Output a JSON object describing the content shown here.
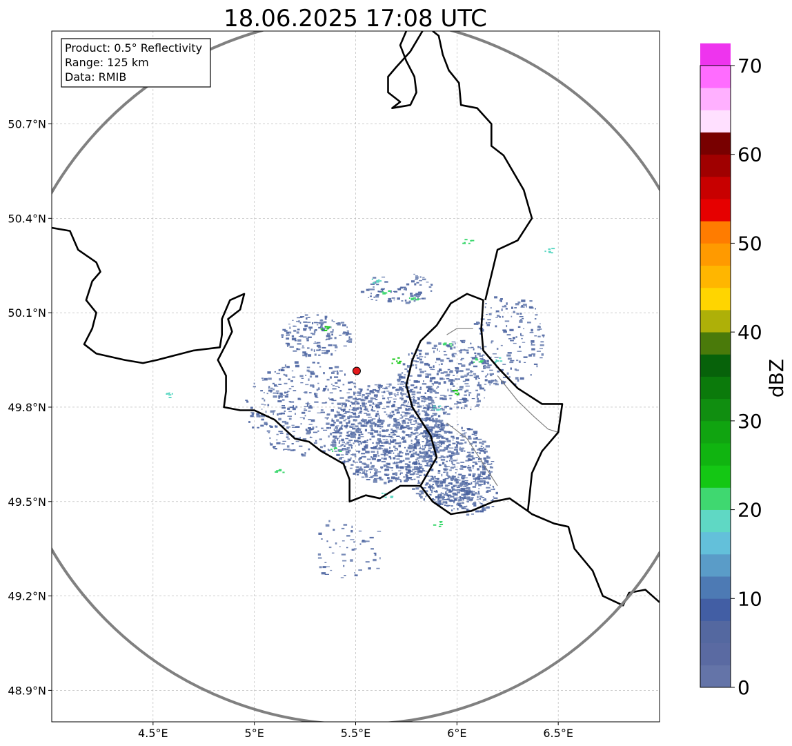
{
  "map": {
    "title": "18.06.2025 17:08 UTC",
    "info": {
      "product": "Product: 0.5° Reflectivity",
      "range": "Range: 125 km",
      "source": "Data: RMIB"
    },
    "extent": {
      "lon": [
        4.0,
        7.0
      ],
      "lat": [
        48.8,
        50.995
      ]
    },
    "lon_ticks": [
      {
        "value": 4.5,
        "label": "4.5°E"
      },
      {
        "value": 5.0,
        "label": "5°E"
      },
      {
        "value": 5.5,
        "label": "5.5°E"
      },
      {
        "value": 6.0,
        "label": "6°E"
      },
      {
        "value": 6.5,
        "label": "6.5°E"
      }
    ],
    "lat_ticks": [
      {
        "value": 48.9,
        "label": "48.9°N"
      },
      {
        "value": 49.2,
        "label": "49.2°N"
      },
      {
        "value": 49.5,
        "label": "49.5°N"
      },
      {
        "value": 49.8,
        "label": "49.8°N"
      },
      {
        "value": 50.1,
        "label": "50.1°N"
      },
      {
        "value": 50.4,
        "label": "50.4°N"
      },
      {
        "value": 50.7,
        "label": "50.7°N"
      }
    ],
    "radar_site": {
      "lon": 5.505,
      "lat": 49.915,
      "color": "#e41a1c"
    },
    "range_ring": {
      "center_lon": 5.505,
      "center_lat": 49.915,
      "radius_km": 125,
      "color": "#808080"
    },
    "colors": {
      "grid": "#b0b0b0",
      "border": "#000000",
      "inner_border": "#808080",
      "echo_light": "#6a7fb0",
      "echo_dark": "#4a63a0"
    },
    "colorbar": {
      "label": "dBZ",
      "min": 0,
      "max": 70,
      "step": 2.5,
      "ticks": [
        {
          "value": 0,
          "label": "0"
        },
        {
          "value": 10,
          "label": "10"
        },
        {
          "value": 20,
          "label": "20"
        },
        {
          "value": 30,
          "label": "30"
        },
        {
          "value": 40,
          "label": "40"
        },
        {
          "value": 50,
          "label": "50"
        },
        {
          "value": 60,
          "label": "60"
        },
        {
          "value": 70,
          "label": "70"
        }
      ],
      "colors": [
        "#6474a8",
        "#5a6aa2",
        "#5468a0",
        "#425ea4",
        "#4d7ab4",
        "#5a9cc8",
        "#63c0da",
        "#5fd8c4",
        "#3fd870",
        "#14c714",
        "#10b410",
        "#10a410",
        "#108e10",
        "#0b7a0b",
        "#07620a",
        "#4a7a0a",
        "#aeb008",
        "#ffd500",
        "#ffb600",
        "#ff9a00",
        "#ff7c00",
        "#e60000",
        "#c80000",
        "#a00000",
        "#780000",
        "#ffe0ff",
        "#ffb0ff",
        "#ff6cff",
        "#ee34ee"
      ]
    },
    "borders": [
      {
        "id": "belgium-france-west",
        "points": [
          [
            4.0,
            50.37
          ],
          [
            4.09,
            50.36
          ],
          [
            4.13,
            50.3
          ],
          [
            4.22,
            50.26
          ],
          [
            4.24,
            50.23
          ],
          [
            4.2,
            50.2
          ],
          [
            4.17,
            50.14
          ],
          [
            4.22,
            50.1
          ],
          [
            4.2,
            50.05
          ],
          [
            4.16,
            50.0
          ],
          [
            4.22,
            49.97
          ],
          [
            4.36,
            49.95
          ],
          [
            4.45,
            49.94
          ],
          [
            4.52,
            49.95
          ],
          [
            4.7,
            49.98
          ],
          [
            4.83,
            49.99
          ],
          [
            4.84,
            50.03
          ],
          [
            4.84,
            50.08
          ],
          [
            4.88,
            50.14
          ],
          [
            4.95,
            50.16
          ],
          [
            4.93,
            50.11
          ],
          [
            4.87,
            50.08
          ],
          [
            4.89,
            50.04
          ],
          [
            4.86,
            50.0
          ],
          [
            4.82,
            49.95
          ],
          [
            4.86,
            49.9
          ],
          [
            4.86,
            49.85
          ],
          [
            4.85,
            49.8
          ],
          [
            4.93,
            49.79
          ],
          [
            5.0,
            49.79
          ],
          [
            5.1,
            49.76
          ],
          [
            5.2,
            49.7
          ],
          [
            5.27,
            49.69
          ],
          [
            5.33,
            49.66
          ],
          [
            5.44,
            49.62
          ],
          [
            5.47,
            49.57
          ],
          [
            5.47,
            49.5
          ],
          [
            5.55,
            49.52
          ],
          [
            5.62,
            49.51
          ],
          [
            5.72,
            49.55
          ],
          [
            5.82,
            49.55
          ],
          [
            5.88,
            49.5
          ],
          [
            5.97,
            49.46
          ],
          [
            6.07,
            49.47
          ],
          [
            6.18,
            49.5
          ],
          [
            6.26,
            49.51
          ],
          [
            6.35,
            49.47
          ],
          [
            6.37,
            49.46
          ],
          [
            6.48,
            49.43
          ],
          [
            6.55,
            49.42
          ],
          [
            6.58,
            49.35
          ],
          [
            6.67,
            49.28
          ],
          [
            6.72,
            49.2
          ],
          [
            6.82,
            49.17
          ],
          [
            6.85,
            49.21
          ],
          [
            6.93,
            49.22
          ],
          [
            7.0,
            49.18
          ]
        ]
      },
      {
        "id": "luxembourg-belgium",
        "points": [
          [
            5.82,
            49.55
          ],
          [
            5.9,
            49.64
          ],
          [
            5.87,
            49.71
          ],
          [
            5.78,
            49.8
          ],
          [
            5.75,
            49.87
          ],
          [
            5.78,
            49.95
          ],
          [
            5.82,
            50.01
          ],
          [
            5.9,
            50.06
          ],
          [
            5.97,
            50.13
          ],
          [
            6.05,
            50.16
          ],
          [
            6.13,
            50.14
          ],
          [
            6.12,
            50.05
          ],
          [
            6.13,
            49.98
          ],
          [
            6.21,
            49.92
          ],
          [
            6.3,
            49.86
          ],
          [
            6.42,
            49.81
          ],
          [
            6.52,
            49.81
          ],
          [
            6.5,
            49.72
          ],
          [
            6.42,
            49.66
          ],
          [
            6.37,
            49.59
          ],
          [
            6.36,
            49.53
          ],
          [
            6.35,
            49.47
          ]
        ]
      },
      {
        "id": "belgium-germany",
        "points": [
          [
            6.14,
            50.14
          ],
          [
            6.17,
            50.22
          ],
          [
            6.2,
            50.3
          ],
          [
            6.3,
            50.33
          ],
          [
            6.37,
            50.4
          ],
          [
            6.33,
            50.49
          ],
          [
            6.23,
            50.6
          ],
          [
            6.17,
            50.63
          ],
          [
            6.17,
            50.7
          ],
          [
            6.1,
            50.75
          ],
          [
            6.02,
            50.76
          ],
          [
            6.01,
            50.83
          ],
          [
            5.96,
            50.87
          ],
          [
            5.93,
            50.92
          ],
          [
            5.91,
            50.98
          ],
          [
            5.88,
            50.995
          ]
        ]
      },
      {
        "id": "netherlands-limburg",
        "points": [
          [
            5.83,
            50.995
          ],
          [
            5.77,
            50.93
          ],
          [
            5.7,
            50.88
          ],
          [
            5.66,
            50.85
          ],
          [
            5.66,
            50.8
          ],
          [
            5.72,
            50.77
          ],
          [
            5.68,
            50.75
          ],
          [
            5.77,
            50.76
          ],
          [
            5.8,
            50.8
          ],
          [
            5.79,
            50.85
          ],
          [
            5.75,
            50.9
          ],
          [
            5.72,
            50.95
          ],
          [
            5.75,
            50.995
          ]
        ]
      }
    ],
    "inner_borders": [
      {
        "id": "luxembourg-internal",
        "points": [
          [
            5.95,
            50.03
          ],
          [
            6.0,
            50.05
          ],
          [
            6.08,
            50.05
          ]
        ]
      },
      {
        "id": "moselle-river",
        "points": [
          [
            6.2,
            49.9
          ],
          [
            6.3,
            49.82
          ],
          [
            6.38,
            49.77
          ],
          [
            6.45,
            49.73
          ],
          [
            6.5,
            49.72
          ]
        ]
      },
      {
        "id": "alzette-river",
        "points": [
          [
            5.95,
            49.75
          ],
          [
            6.05,
            49.7
          ],
          [
            6.13,
            49.62
          ],
          [
            6.2,
            49.55
          ]
        ]
      }
    ],
    "echo_clusters": [
      {
        "lon": 5.3,
        "lat": 50.03,
        "r_lon": 0.17,
        "r_lat": 0.07,
        "density": 0.55
      },
      {
        "lon": 5.65,
        "lat": 49.72,
        "r_lon": 0.28,
        "r_lat": 0.16,
        "density": 0.9
      },
      {
        "lon": 5.95,
        "lat": 49.62,
        "r_lon": 0.22,
        "r_lat": 0.13,
        "density": 0.8
      },
      {
        "lon": 5.95,
        "lat": 49.9,
        "r_lon": 0.25,
        "r_lat": 0.12,
        "density": 0.5
      },
      {
        "lon": 5.25,
        "lat": 49.8,
        "r_lon": 0.3,
        "r_lat": 0.15,
        "density": 0.35
      },
      {
        "lon": 6.05,
        "lat": 49.52,
        "r_lon": 0.15,
        "r_lat": 0.06,
        "density": 0.65
      },
      {
        "lon": 5.7,
        "lat": 50.18,
        "r_lon": 0.18,
        "r_lat": 0.05,
        "density": 0.4
      },
      {
        "lon": 6.25,
        "lat": 50.02,
        "r_lon": 0.18,
        "r_lat": 0.15,
        "density": 0.25
      },
      {
        "lon": 5.45,
        "lat": 49.35,
        "r_lon": 0.2,
        "r_lat": 0.1,
        "density": 0.12
      }
    ],
    "echo_highlights": [
      {
        "lon": 5.65,
        "lat": 50.17,
        "color": "#3fd870"
      },
      {
        "lon": 5.6,
        "lat": 50.2,
        "color": "#5fd8c4"
      },
      {
        "lon": 5.78,
        "lat": 50.15,
        "color": "#3fd870"
      },
      {
        "lon": 5.35,
        "lat": 50.05,
        "color": "#14c714"
      },
      {
        "lon": 5.7,
        "lat": 49.95,
        "color": "#14c714"
      },
      {
        "lon": 5.95,
        "lat": 50.0,
        "color": "#3fd870"
      },
      {
        "lon": 5.9,
        "lat": 49.8,
        "color": "#5fd8c4"
      },
      {
        "lon": 6.1,
        "lat": 49.95,
        "color": "#3fd870"
      },
      {
        "lon": 6.0,
        "lat": 49.85,
        "color": "#14c714"
      },
      {
        "lon": 5.65,
        "lat": 49.52,
        "color": "#5fd8c4"
      },
      {
        "lon": 5.9,
        "lat": 49.43,
        "color": "#3fd870"
      },
      {
        "lon": 6.2,
        "lat": 49.95,
        "color": "#5fd8c4"
      },
      {
        "lon": 6.45,
        "lat": 50.3,
        "color": "#5fd8c4"
      },
      {
        "lon": 6.05,
        "lat": 50.33,
        "color": "#3fd870"
      },
      {
        "lon": 5.4,
        "lat": 49.67,
        "color": "#3fd870"
      },
      {
        "lon": 5.12,
        "lat": 49.6,
        "color": "#3fd870"
      },
      {
        "lon": 4.58,
        "lat": 49.84,
        "color": "#5fd8c4"
      }
    ]
  }
}
